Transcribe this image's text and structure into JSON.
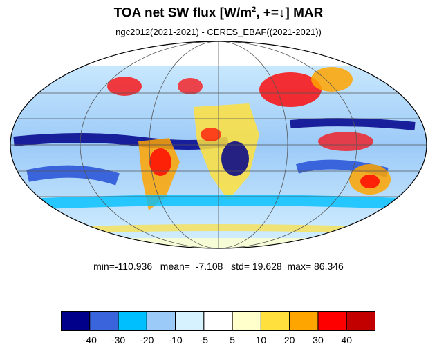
{
  "title": {
    "main": "TOA net SW flux [W/m",
    "sup": "2",
    "after": ", +=↓]  MAR"
  },
  "subtitle": "ngc2012(2021-2021) - CERES_EBAF((2021-2021))",
  "stats": {
    "min_label": "min=",
    "min": "-110.936",
    "mean_label": "mean=",
    "mean": "-7.108",
    "std_label": "std=",
    "std": "19.628",
    "max_label": "max=",
    "max": "86.346"
  },
  "colorbar": {
    "colors": [
      "#00008b",
      "#3a64dc",
      "#00bfff",
      "#9ccaf8",
      "#d7f2ff",
      "#ffffff",
      "#ffffcc",
      "#ffe03c",
      "#ffa500",
      "#ff0000",
      "#c20000"
    ],
    "labels": [
      "-40",
      "-30",
      "-20",
      "-10",
      "-5",
      "5",
      "10",
      "20",
      "30",
      "40"
    ]
  },
  "map": {
    "projection": "Mollweide",
    "grid": true,
    "meridians_deg": [
      -120,
      -60,
      0,
      60,
      120
    ],
    "parallels_deg": [
      -60,
      -30,
      0,
      30,
      60
    ]
  }
}
